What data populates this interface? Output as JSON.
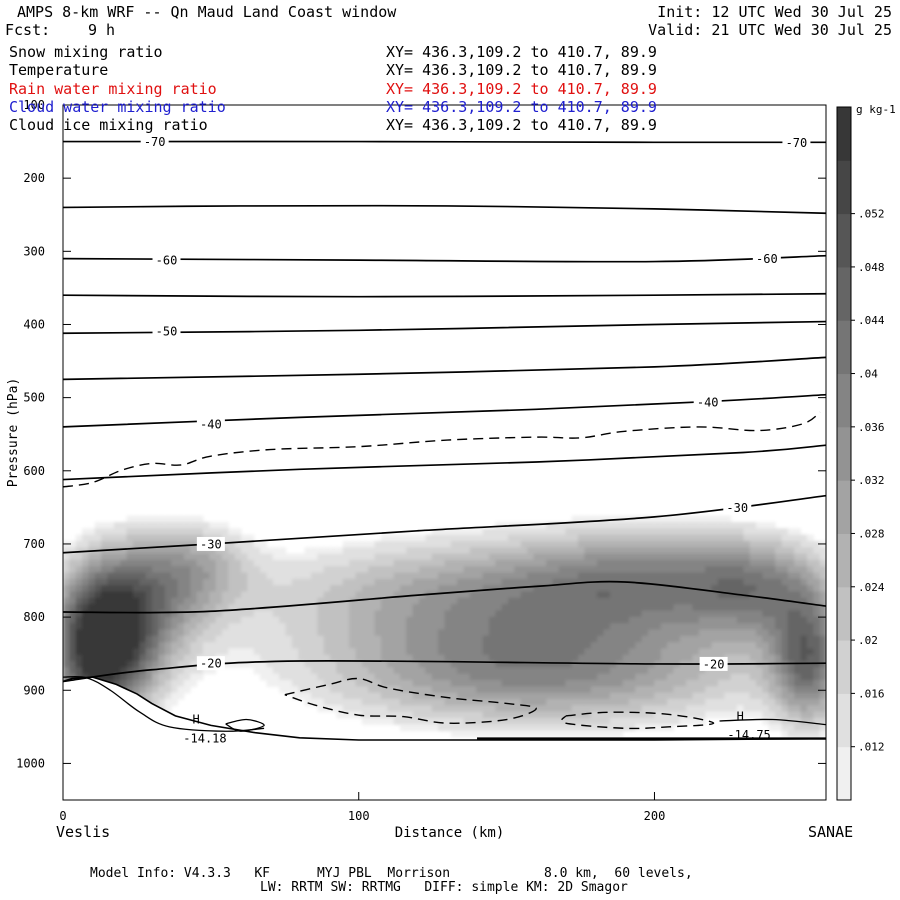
{
  "header": {
    "title": "AMPS 8-km WRF -- Qn Maud Land Coast window",
    "init": "Init: 12 UTC Wed 30 Jul 25",
    "fcst_label": "Fcst:",
    "fcst_value": "9 h",
    "valid": "Valid: 21 UTC Wed 30 Jul 25"
  },
  "legend": [
    {
      "name": "Snow mixing ratio",
      "xy": "XY= 436.3,109.2 to 410.7, 89.9",
      "color": "#000000"
    },
    {
      "name": "Temperature",
      "xy": "XY= 436.3,109.2 to 410.7, 89.9",
      "color": "#000000"
    },
    {
      "name": "Rain water mixing ratio",
      "xy": "XY= 436.3,109.2 to 410.7, 89.9",
      "color": "#e01010"
    },
    {
      "name": "Cloud water mixing ratio",
      "xy": "XY= 436.3,109.2 to 410.7, 89.9",
      "color": "#2020d0"
    },
    {
      "name": "Cloud ice mixing ratio",
      "xy": "XY= 436.3,109.2 to 410.7, 89.9",
      "color": "#000000"
    }
  ],
  "x_endpoints": {
    "left": "Veslis",
    "right": "SANAE"
  },
  "footer": {
    "line1": "Model Info: V4.3.3   KF      MYJ PBL  Morrison            8.0 km,  60 levels,",
    "line2": "LW: RRTM SW: RRTMG   DIFF: simple KM: 2D Smagor"
  },
  "chart_data": {
    "type": "heatmap",
    "title": "AMPS 8-km WRF -- Qn Maud Land Coast window",
    "xlabel": "Distance (km)",
    "ylabel": "Pressure (hPa)",
    "xlim": [
      0,
      258
    ],
    "ylim": [
      1050,
      100
    ],
    "x_ticks": [
      0,
      100,
      200
    ],
    "y_ticks": [
      100,
      200,
      300,
      400,
      500,
      600,
      700,
      800,
      900,
      1000
    ],
    "colorbar": {
      "unit": "g kg-1",
      "ticks": [
        ".012",
        ".016",
        ".02",
        ".024",
        ".028",
        ".032",
        ".036",
        ".04",
        ".044",
        ".048",
        ".052"
      ],
      "range": [
        0.008,
        0.058
      ]
    },
    "shading_blobs": [
      {
        "x": 12,
        "p": 850,
        "sx": 12,
        "sp": 75,
        "v": 0.05
      },
      {
        "x": 24,
        "p": 790,
        "sx": 16,
        "sp": 70,
        "v": 0.03
      },
      {
        "x": 45,
        "p": 730,
        "sx": 14,
        "sp": 45,
        "v": 0.018
      },
      {
        "x": 150,
        "p": 770,
        "sx": 60,
        "sp": 60,
        "v": 0.03
      },
      {
        "x": 160,
        "p": 880,
        "sx": 55,
        "sp": 55,
        "v": 0.032
      },
      {
        "x": 200,
        "p": 740,
        "sx": 30,
        "sp": 50,
        "v": 0.018
      },
      {
        "x": 252,
        "p": 860,
        "sx": 9,
        "sp": 65,
        "v": 0.035
      },
      {
        "x": 235,
        "p": 760,
        "sx": 16,
        "sp": 50,
        "v": 0.02
      }
    ],
    "terrain": [
      [
        0,
        888
      ],
      [
        3,
        884
      ],
      [
        10,
        882
      ],
      [
        18,
        892
      ],
      [
        25,
        905
      ],
      [
        30,
        918
      ],
      [
        38,
        935
      ],
      [
        50,
        948
      ],
      [
        65,
        958
      ],
      [
        80,
        965
      ],
      [
        100,
        968
      ],
      [
        150,
        968
      ],
      [
        200,
        968
      ],
      [
        258,
        966
      ]
    ],
    "isotherms": [
      {
        "label": "-70",
        "points": [
          [
            0,
            150
          ],
          [
            100,
            150
          ],
          [
            200,
            151
          ],
          [
            258,
            151
          ]
        ],
        "label_at": [
          [
            31,
            150
          ],
          [
            248,
            151
          ]
        ]
      },
      {
        "points": [
          [
            0,
            240
          ],
          [
            60,
            238
          ],
          [
            130,
            238
          ],
          [
            200,
            242
          ],
          [
            258,
            248
          ]
        ]
      },
      {
        "label": "-60",
        "points": [
          [
            0,
            310
          ],
          [
            100,
            312
          ],
          [
            200,
            314
          ],
          [
            258,
            306
          ]
        ],
        "label_at": [
          [
            35,
            312
          ],
          [
            238,
            310
          ]
        ]
      },
      {
        "points": [
          [
            0,
            360
          ],
          [
            100,
            362
          ],
          [
            200,
            360
          ],
          [
            258,
            358
          ]
        ]
      },
      {
        "label": "-50",
        "points": [
          [
            0,
            412
          ],
          [
            100,
            408
          ],
          [
            200,
            400
          ],
          [
            258,
            396
          ]
        ],
        "label_at": [
          [
            35,
            409
          ]
        ]
      },
      {
        "points": [
          [
            0,
            475
          ],
          [
            100,
            468
          ],
          [
            200,
            458
          ],
          [
            258,
            445
          ]
        ]
      },
      {
        "label": "-40",
        "points": [
          [
            0,
            540
          ],
          [
            80,
            527
          ],
          [
            160,
            516
          ],
          [
            220,
            505
          ],
          [
            258,
            496
          ]
        ],
        "label_at": [
          [
            50,
            536
          ],
          [
            218,
            506
          ]
        ]
      },
      {
        "points": [
          [
            0,
            612
          ],
          [
            80,
            598
          ],
          [
            160,
            588
          ],
          [
            230,
            575
          ],
          [
            258,
            565
          ]
        ]
      },
      {
        "label": "-30",
        "points": [
          [
            0,
            712
          ],
          [
            50,
            700
          ],
          [
            120,
            682
          ],
          [
            200,
            663
          ],
          [
            258,
            634
          ]
        ],
        "label_at": [
          [
            50,
            700
          ],
          [
            228,
            650
          ]
        ]
      },
      {
        "points": [
          [
            0,
            793
          ],
          [
            50,
            792
          ],
          [
            120,
            770
          ],
          [
            160,
            758
          ],
          [
            190,
            752
          ],
          [
            230,
            770
          ],
          [
            258,
            785
          ]
        ]
      },
      {
        "label": "-20",
        "points": [
          [
            0,
            888
          ],
          [
            30,
            872
          ],
          [
            80,
            860
          ],
          [
            200,
            864
          ],
          [
            258,
            863
          ]
        ],
        "label_at": [
          [
            50,
            863
          ],
          [
            220,
            864
          ]
        ]
      }
    ],
    "dashed": [
      {
        "points": [
          [
            0,
            622
          ],
          [
            10,
            616
          ],
          [
            20,
            599
          ],
          [
            30,
            590
          ],
          [
            40,
            592
          ],
          [
            50,
            580
          ],
          [
            70,
            571
          ],
          [
            100,
            567
          ],
          [
            130,
            558
          ],
          [
            160,
            554
          ],
          [
            175,
            555
          ],
          [
            190,
            546
          ],
          [
            215,
            540
          ],
          [
            235,
            545
          ],
          [
            250,
            536
          ],
          [
            256,
            520
          ]
        ]
      },
      {
        "points": [
          [
            75,
            906
          ],
          [
            90,
            892
          ],
          [
            100,
            884
          ],
          [
            110,
            897
          ],
          [
            130,
            910
          ],
          [
            150,
            918
          ],
          [
            160,
            925
          ],
          [
            150,
            940
          ],
          [
            130,
            945
          ],
          [
            115,
            936
          ],
          [
            100,
            934
          ],
          [
            85,
            920
          ],
          [
            75,
            906
          ]
        ]
      },
      {
        "points": [
          [
            170,
            935
          ],
          [
            185,
            930
          ],
          [
            205,
            933
          ],
          [
            220,
            945
          ],
          [
            205,
            950
          ],
          [
            190,
            952
          ],
          [
            170,
            945
          ],
          [
            170,
            935
          ]
        ]
      }
    ],
    "extra_contours": [
      {
        "points": [
          [
            0,
            882
          ],
          [
            8,
            883
          ],
          [
            16,
            900
          ],
          [
            26,
            930
          ],
          [
            36,
            950
          ],
          [
            55,
            956
          ],
          [
            68,
            952
          ]
        ]
      },
      {
        "points": [
          [
            55,
            946
          ],
          [
            62,
            940
          ],
          [
            68,
            948
          ],
          [
            60,
            956
          ],
          [
            55,
            946
          ]
        ]
      },
      {
        "points": [
          [
            222,
            942
          ],
          [
            240,
            940
          ],
          [
            258,
            947
          ]
        ]
      }
    ],
    "annotations": [
      {
        "text": "H",
        "x": 45,
        "p": 940
      },
      {
        "text": "-14.18",
        "x": 48,
        "p": 966
      },
      {
        "text": "H",
        "x": 229,
        "p": 936
      },
      {
        "text": "-14.75",
        "x": 232,
        "p": 961
      }
    ]
  }
}
